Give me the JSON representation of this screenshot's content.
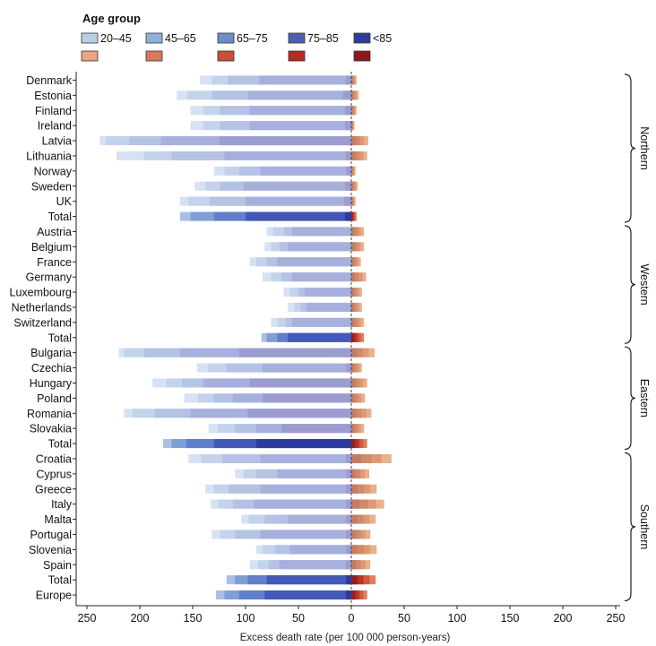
{
  "legend": {
    "title": "Age group",
    "labels": [
      "20–45",
      "45–65",
      "65–75",
      "75–85",
      "<85"
    ],
    "blue_colors": [
      "#b9cfe8",
      "#92afd8",
      "#6f8cc9",
      "#4c5fb0",
      "#2f3d98"
    ],
    "red_colors": [
      "#e8a47f",
      "#d97a5a",
      "#c6503a",
      "#b22d25",
      "#8a1a1c"
    ]
  },
  "colors": {
    "normal_neg": [
      "#d6e2f3",
      "#c4d3ec",
      "#b4c2e4",
      "#a7b0dc",
      "#9b9dd1"
    ],
    "normal_pos": [
      "#f0c7a6",
      "#e9b08b",
      "#de9873",
      "#cf8a6a",
      "#c27d63"
    ],
    "total_neg": [
      "#a8c0e4",
      "#7f9fd4",
      "#5f7fc8",
      "#4458b8",
      "#2d3aa0"
    ],
    "total_pos": [
      "#e9a17a",
      "#df7f5c",
      "#d05a3d",
      "#bb3326",
      "#951f20"
    ],
    "axis": "#222222",
    "zero_line": "#444444"
  },
  "chart_data": {
    "type": "bar",
    "orientation": "horizontal",
    "stacked": true,
    "xlabel": "Excess death rate (per 100 000 person-years)",
    "xlim": [
      -250,
      250
    ],
    "xticks": [
      -250,
      -200,
      -150,
      -100,
      -50,
      0,
      50,
      100,
      150,
      200,
      250
    ],
    "xtick_labels": [
      "250",
      "200",
      "150",
      "100",
      "50",
      "0",
      "50",
      "100",
      "150",
      "200",
      "250"
    ],
    "groups": [
      {
        "name": "Northern",
        "start": 0,
        "end": 9
      },
      {
        "name": "Western",
        "start": 10,
        "end": 17
      },
      {
        "name": "Eastern",
        "start": 18,
        "end": 24
      },
      {
        "name": "Southern",
        "start": 25,
        "end": 34
      }
    ],
    "rows": [
      {
        "label": "Denmark",
        "total": false,
        "neg": [
          -143,
          -132,
          -117,
          -87,
          -5
        ],
        "pos": [
          5
        ]
      },
      {
        "label": "Estonia",
        "total": false,
        "neg": [
          -165,
          -155,
          -132,
          -98,
          -8
        ],
        "pos": [
          7
        ]
      },
      {
        "label": "Finland",
        "total": false,
        "neg": [
          -152,
          -140,
          -124,
          -96,
          -6
        ],
        "pos": [
          5
        ]
      },
      {
        "label": "Ireland",
        "total": false,
        "neg": [
          -152,
          -140,
          -124,
          -96,
          -6
        ],
        "pos": [
          3
        ]
      },
      {
        "label": "Latvia",
        "total": false,
        "neg": [
          -238,
          -232,
          -210,
          -180,
          -125,
          -5
        ],
        "pos": [
          16
        ]
      },
      {
        "label": "Lithuania",
        "total": false,
        "neg": [
          -222,
          -196,
          -170,
          -120,
          -5
        ],
        "pos": [
          15
        ]
      },
      {
        "label": "Norway",
        "total": false,
        "neg": [
          -130,
          -120,
          -106,
          -86,
          -5
        ],
        "pos": [
          4
        ]
      },
      {
        "label": "Sweden",
        "total": false,
        "neg": [
          -148,
          -138,
          -124,
          -102,
          -6
        ],
        "pos": [
          6
        ]
      },
      {
        "label": "UK",
        "total": false,
        "neg": [
          -162,
          -154,
          -134,
          -100,
          -7
        ],
        "pos": [
          4
        ]
      },
      {
        "label": "Total",
        "total": true,
        "neg": [
          -162,
          -152,
          -130,
          -100,
          -6
        ],
        "pos": [
          5
        ]
      },
      {
        "label": "Austria",
        "total": false,
        "neg": [
          -80,
          -74,
          -64,
          -56
        ],
        "pos": [
          12
        ]
      },
      {
        "label": "Belgium",
        "total": false,
        "neg": [
          -82,
          -76,
          -68,
          -60
        ],
        "pos": [
          12
        ]
      },
      {
        "label": "France",
        "total": false,
        "neg": [
          -96,
          -90,
          -80,
          -70
        ],
        "pos": [
          9
        ]
      },
      {
        "label": "Germany",
        "total": false,
        "neg": [
          -84,
          -76,
          -66,
          -56
        ],
        "pos": [
          14
        ]
      },
      {
        "label": "Luxembourg",
        "total": false,
        "neg": [
          -64,
          -58,
          -50,
          -44
        ],
        "pos": [
          10
        ]
      },
      {
        "label": "Netherlands",
        "total": false,
        "neg": [
          -60,
          -54,
          -48,
          -42
        ],
        "pos": [
          10
        ]
      },
      {
        "label": "Switzerland",
        "total": false,
        "neg": [
          -76,
          -70,
          -62,
          -56
        ],
        "pos": [
          12
        ]
      },
      {
        "label": "Total",
        "total": true,
        "neg": [
          -85,
          -80,
          -70,
          -60
        ],
        "pos": [
          12
        ]
      },
      {
        "label": "Bulgaria",
        "total": false,
        "neg": [
          -220,
          -215,
          -196,
          -162,
          -106,
          -5
        ],
        "pos": [
          22
        ]
      },
      {
        "label": "Czechia",
        "total": false,
        "neg": [
          -146,
          -136,
          -118,
          -84,
          -5
        ],
        "pos": [
          10
        ]
      },
      {
        "label": "Hungary",
        "total": false,
        "neg": [
          -188,
          -175,
          -160,
          -140,
          -96,
          -5
        ],
        "pos": [
          15
        ]
      },
      {
        "label": "Poland",
        "total": false,
        "neg": [
          -158,
          -145,
          -130,
          -112,
          -84,
          -5
        ],
        "pos": [
          13
        ]
      },
      {
        "label": "Romania",
        "total": false,
        "neg": [
          -215,
          -207,
          -186,
          -152,
          -98,
          -5
        ],
        "pos": [
          19
        ]
      },
      {
        "label": "Slovakia",
        "total": false,
        "neg": [
          -135,
          -126,
          -110,
          -90,
          -66,
          -5
        ],
        "pos": [
          12
        ]
      },
      {
        "label": "Total",
        "total": true,
        "neg": [
          -178,
          -170,
          -156,
          -130,
          -90,
          -5
        ],
        "pos": [
          15
        ]
      },
      {
        "label": "Croatia",
        "total": false,
        "neg": [
          -154,
          -142,
          -122,
          -86,
          -5
        ],
        "pos": [
          38
        ]
      },
      {
        "label": "Cyprus",
        "total": false,
        "neg": [
          -110,
          -102,
          -90,
          -70,
          -5
        ],
        "pos": [
          17
        ]
      },
      {
        "label": "Greece",
        "total": false,
        "neg": [
          -138,
          -130,
          -116,
          -86,
          -5
        ],
        "pos": [
          24
        ]
      },
      {
        "label": "Italy",
        "total": false,
        "neg": [
          -133,
          -126,
          -112,
          -92,
          -5
        ],
        "pos": [
          31
        ]
      },
      {
        "label": "Malta",
        "total": false,
        "neg": [
          -104,
          -97,
          -82,
          -60,
          -5
        ],
        "pos": [
          23
        ]
      },
      {
        "label": "Portugal",
        "total": false,
        "neg": [
          -132,
          -124,
          -110,
          -86,
          -5
        ],
        "pos": [
          18
        ]
      },
      {
        "label": "Slovenia",
        "total": false,
        "neg": [
          -90,
          -84,
          -72,
          -58,
          -5
        ],
        "pos": [
          24
        ]
      },
      {
        "label": "Spain",
        "total": false,
        "neg": [
          -96,
          -88,
          -78,
          -68,
          -5
        ],
        "pos": [
          18
        ]
      },
      {
        "label": "Total",
        "total": true,
        "neg": [
          -118,
          -110,
          -98,
          -80,
          -5
        ],
        "pos": [
          23
        ]
      },
      {
        "label": "Europe",
        "total": true,
        "neg": [
          -128,
          -120,
          -106,
          -82,
          -5
        ],
        "pos": [
          15
        ]
      }
    ]
  }
}
